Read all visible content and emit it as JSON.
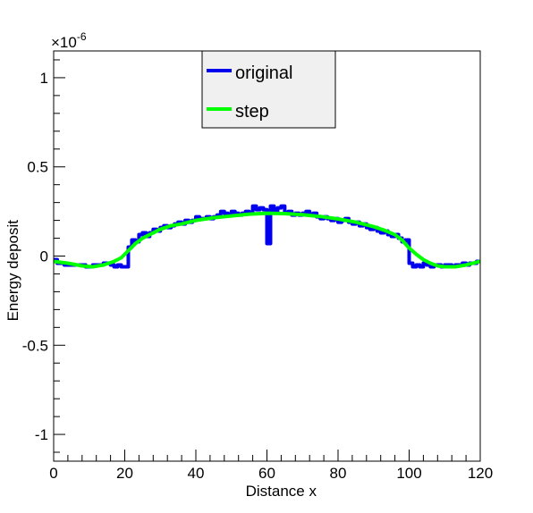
{
  "chart_data": {
    "type": "line",
    "title": "",
    "xlabel": "Distance x",
    "ylabel": "Energy deposit",
    "y_exponent_label": "×10",
    "y_exponent_power": "-6",
    "xlim": [
      0,
      120
    ],
    "ylim": [
      -1.15,
      1.15
    ],
    "x_ticks": [
      {
        "value": 0,
        "label": "0"
      },
      {
        "value": 20,
        "label": "20"
      },
      {
        "value": 40,
        "label": "40"
      },
      {
        "value": 60,
        "label": "60"
      },
      {
        "value": 80,
        "label": "80"
      },
      {
        "value": 100,
        "label": "100"
      },
      {
        "value": 120,
        "label": "120"
      }
    ],
    "y_ticks": [
      {
        "value": -1,
        "label": "-1"
      },
      {
        "value": -0.5,
        "label": "-0.5"
      },
      {
        "value": 0,
        "label": "0"
      },
      {
        "value": 0.5,
        "label": "0.5"
      },
      {
        "value": 1,
        "label": "1"
      }
    ],
    "grid": false,
    "legend_position": "top-center",
    "series": [
      {
        "name": "original",
        "color": "#0000ee",
        "style": "step",
        "points": [
          [
            0,
            -0.02
          ],
          [
            1,
            -0.04
          ],
          [
            3,
            -0.05
          ],
          [
            5,
            -0.05
          ],
          [
            7,
            -0.05
          ],
          [
            9,
            -0.06
          ],
          [
            11,
            -0.05
          ],
          [
            13,
            -0.05
          ],
          [
            14,
            -0.04
          ],
          [
            15,
            -0.04
          ],
          [
            16,
            -0.05
          ],
          [
            17,
            -0.06
          ],
          [
            18,
            -0.05
          ],
          [
            19,
            -0.06
          ],
          [
            20,
            -0.06
          ],
          [
            21,
            0.05
          ],
          [
            22,
            0.09
          ],
          [
            23,
            0.08
          ],
          [
            24,
            0.12
          ],
          [
            25,
            0.13
          ],
          [
            26,
            0.11
          ],
          [
            27,
            0.13
          ],
          [
            28,
            0.15
          ],
          [
            29,
            0.14
          ],
          [
            30,
            0.16
          ],
          [
            31,
            0.17
          ],
          [
            32,
            0.16
          ],
          [
            33,
            0.17
          ],
          [
            34,
            0.18
          ],
          [
            35,
            0.19
          ],
          [
            36,
            0.18
          ],
          [
            37,
            0.2
          ],
          [
            38,
            0.19
          ],
          [
            39,
            0.2
          ],
          [
            40,
            0.22
          ],
          [
            41,
            0.21
          ],
          [
            42,
            0.21
          ],
          [
            43,
            0.22
          ],
          [
            44,
            0.21
          ],
          [
            45,
            0.22
          ],
          [
            46,
            0.23
          ],
          [
            47,
            0.25
          ],
          [
            48,
            0.24
          ],
          [
            49,
            0.23
          ],
          [
            50,
            0.25
          ],
          [
            51,
            0.24
          ],
          [
            52,
            0.23
          ],
          [
            53,
            0.24
          ],
          [
            54,
            0.25
          ],
          [
            55,
            0.24
          ],
          [
            56,
            0.28
          ],
          [
            57,
            0.26
          ],
          [
            58,
            0.27
          ],
          [
            59,
            0.26
          ],
          [
            60,
            0.07
          ],
          [
            61,
            0.28
          ],
          [
            62,
            0.25
          ],
          [
            63,
            0.27
          ],
          [
            64,
            0.28
          ],
          [
            65,
            0.24
          ],
          [
            66,
            0.25
          ],
          [
            67,
            0.23
          ],
          [
            68,
            0.24
          ],
          [
            69,
            0.23
          ],
          [
            70,
            0.24
          ],
          [
            71,
            0.25
          ],
          [
            72,
            0.23
          ],
          [
            73,
            0.24
          ],
          [
            74,
            0.22
          ],
          [
            75,
            0.21
          ],
          [
            76,
            0.22
          ],
          [
            77,
            0.21
          ],
          [
            78,
            0.2
          ],
          [
            79,
            0.21
          ],
          [
            80,
            0.19
          ],
          [
            81,
            0.2
          ],
          [
            82,
            0.21
          ],
          [
            83,
            0.19
          ],
          [
            84,
            0.18
          ],
          [
            85,
            0.19
          ],
          [
            86,
            0.17
          ],
          [
            87,
            0.18
          ],
          [
            88,
            0.16
          ],
          [
            89,
            0.15
          ],
          [
            90,
            0.16
          ],
          [
            91,
            0.14
          ],
          [
            92,
            0.13
          ],
          [
            93,
            0.14
          ],
          [
            94,
            0.12
          ],
          [
            95,
            0.11
          ],
          [
            96,
            0.12
          ],
          [
            97,
            0.1
          ],
          [
            98,
            0.08
          ],
          [
            99,
            0.09
          ],
          [
            100,
            -0.04
          ],
          [
            101,
            -0.06
          ],
          [
            102,
            -0.05
          ],
          [
            103,
            -0.06
          ],
          [
            104,
            -0.04
          ],
          [
            105,
            -0.05
          ],
          [
            106,
            -0.06
          ],
          [
            107,
            -0.05
          ],
          [
            108,
            -0.05
          ],
          [
            109,
            -0.06
          ],
          [
            110,
            -0.05
          ],
          [
            111,
            -0.05
          ],
          [
            112,
            -0.06
          ],
          [
            113,
            -0.05
          ],
          [
            114,
            -0.05
          ],
          [
            115,
            -0.04
          ],
          [
            116,
            -0.05
          ],
          [
            117,
            -0.04
          ],
          [
            118,
            -0.04
          ],
          [
            119,
            -0.03
          ],
          [
            120,
            -0.03
          ]
        ]
      },
      {
        "name": "step",
        "color": "#00ff00",
        "style": "smooth",
        "points": [
          [
            0,
            -0.03
          ],
          [
            4,
            -0.04
          ],
          [
            8,
            -0.055
          ],
          [
            11,
            -0.06
          ],
          [
            14,
            -0.05
          ],
          [
            17,
            -0.03
          ],
          [
            19,
            -0.01
          ],
          [
            21,
            0.03
          ],
          [
            23,
            0.07
          ],
          [
            25,
            0.1
          ],
          [
            27,
            0.12
          ],
          [
            30,
            0.15
          ],
          [
            33,
            0.17
          ],
          [
            36,
            0.18
          ],
          [
            40,
            0.2
          ],
          [
            45,
            0.215
          ],
          [
            50,
            0.225
          ],
          [
            55,
            0.235
          ],
          [
            60,
            0.24
          ],
          [
            65,
            0.238
          ],
          [
            70,
            0.232
          ],
          [
            75,
            0.222
          ],
          [
            80,
            0.208
          ],
          [
            85,
            0.19
          ],
          [
            90,
            0.165
          ],
          [
            93,
            0.145
          ],
          [
            96,
            0.12
          ],
          [
            98,
            0.09
          ],
          [
            100,
            0.045
          ],
          [
            102,
            0.01
          ],
          [
            104,
            -0.02
          ],
          [
            106,
            -0.04
          ],
          [
            108,
            -0.055
          ],
          [
            110,
            -0.06
          ],
          [
            113,
            -0.06
          ],
          [
            116,
            -0.05
          ],
          [
            118,
            -0.04
          ],
          [
            120,
            -0.03
          ]
        ]
      }
    ]
  }
}
